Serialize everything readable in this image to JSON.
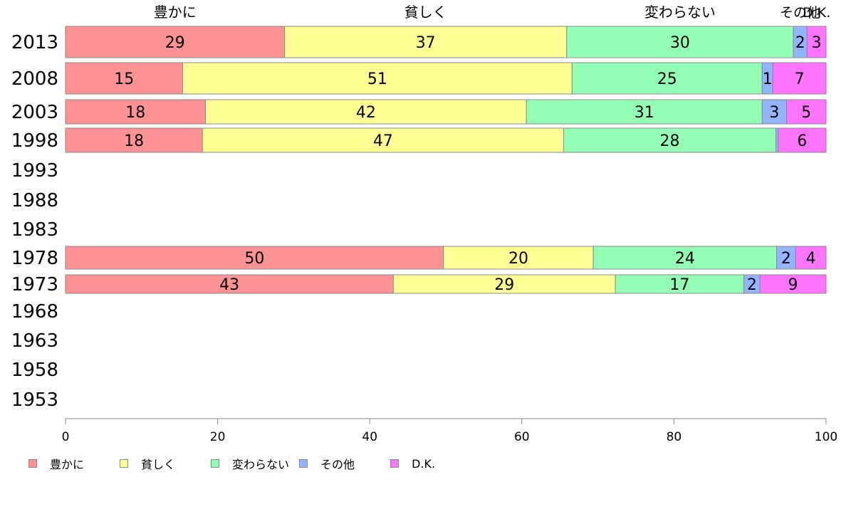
{
  "chart_data": {
    "type": "bar",
    "orientation": "horizontal",
    "stacked": true,
    "categories": [
      "2013",
      "2008",
      "2003",
      "1998",
      "1993",
      "1988",
      "1983",
      "1978",
      "1973",
      "1968",
      "1963",
      "1958",
      "1953"
    ],
    "series": [
      {
        "name": "豊かに",
        "color": "#ff9393",
        "values": [
          28.8,
          15.4,
          18.4,
          18.0,
          null,
          null,
          null,
          49.7,
          43.1,
          null,
          null,
          null,
          null
        ],
        "labels": [
          "29",
          "15",
          "18",
          "18",
          "",
          "",
          "",
          "50",
          "43",
          "",
          "",
          "",
          ""
        ]
      },
      {
        "name": "貧しく",
        "color": "#ffff93",
        "values": [
          37.1,
          51.2,
          42.2,
          47.5,
          null,
          null,
          null,
          19.7,
          29.2,
          null,
          null,
          null,
          null
        ],
        "labels": [
          "37",
          "51",
          "42",
          "47",
          "",
          "",
          "",
          "20",
          "29",
          "",
          "",
          "",
          ""
        ]
      },
      {
        "name": "変わらない",
        "color": "#93ffb4",
        "values": [
          29.8,
          25.0,
          31.0,
          27.9,
          null,
          null,
          null,
          24.1,
          16.9,
          null,
          null,
          null,
          null
        ],
        "labels": [
          "30",
          "25",
          "31",
          "28",
          "",
          "",
          "",
          "24",
          "17",
          "",
          "",
          "",
          ""
        ]
      },
      {
        "name": "その他",
        "color": "#93b4ff",
        "values": [
          1.8,
          1.4,
          3.2,
          0.3,
          null,
          null,
          null,
          2.5,
          2.1,
          null,
          null,
          null,
          null
        ],
        "labels": [
          "2",
          "1",
          "3",
          "",
          "",
          "",
          "",
          "2",
          "2",
          "",
          "",
          "",
          ""
        ]
      },
      {
        "name": "D.K.",
        "color": "#ff74ff",
        "values": [
          2.5,
          7.0,
          5.2,
          6.3,
          null,
          null,
          null,
          4.0,
          8.7,
          null,
          null,
          null,
          null
        ],
        "labels": [
          "3",
          "7",
          "5",
          "6",
          "",
          "",
          "",
          "4",
          "9",
          "",
          "",
          "",
          ""
        ]
      }
    ],
    "top_labels": [
      "豊かに",
      "貧しく",
      "変わらない",
      "その他",
      "D.K."
    ],
    "xlim": [
      0,
      100
    ],
    "xticks": [
      "0",
      "20",
      "40",
      "60",
      "80",
      "100"
    ],
    "grid": false,
    "legend_position": "bottom-left"
  }
}
